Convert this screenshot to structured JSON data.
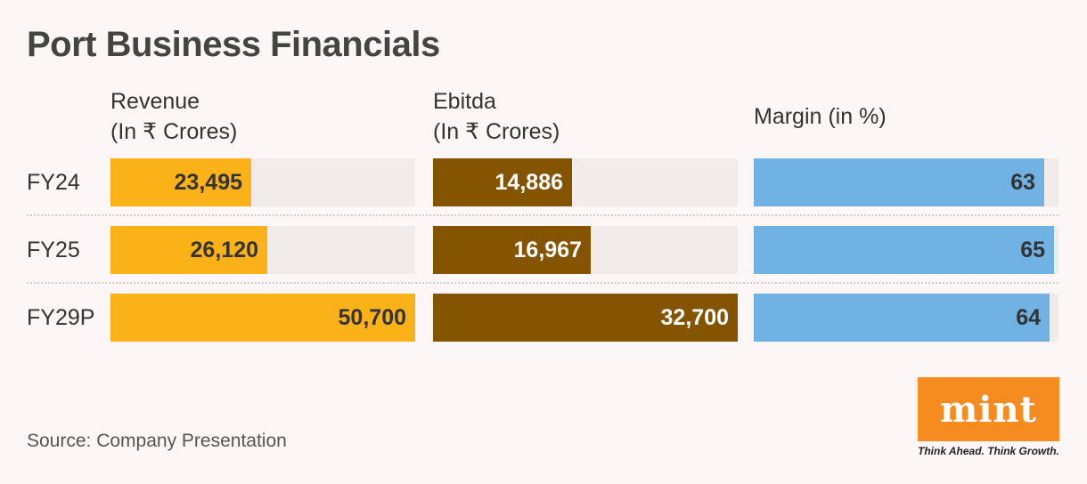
{
  "title": "Port Business Financials",
  "chart_data": {
    "type": "bar",
    "orientation": "horizontal",
    "categories": [
      "FY24",
      "FY25",
      "FY29P"
    ],
    "series": [
      {
        "name": "Revenue",
        "header_line1": "Revenue",
        "header_line2": "(In ₹ Crores)",
        "values": [
          23495,
          26120,
          50700
        ],
        "labels": [
          "23,495",
          "26,120",
          "50,700"
        ],
        "max": 50700,
        "color": "#fbb219",
        "label_color": "#333333"
      },
      {
        "name": "Ebitda",
        "header_line1": "Ebitda",
        "header_line2": "(In ₹ Crores)",
        "values": [
          14886,
          16967,
          32700
        ],
        "labels": [
          "14,886",
          "16,967",
          "32,700"
        ],
        "max": 32700,
        "color": "#855400",
        "label_color": "#ffffff"
      },
      {
        "name": "Margin (in %)",
        "header_line1": "Margin (in %)",
        "header_line2": "",
        "values": [
          63,
          65,
          64
        ],
        "labels": [
          "63",
          "65",
          "64"
        ],
        "max": 66,
        "color": "#6fb2e3",
        "label_color": "#333333"
      }
    ],
    "track_color": "#f1ecea"
  },
  "footer": {
    "source": "Source: Company Presentation"
  },
  "branding": {
    "logo_text": "mint",
    "tagline": "Think Ahead. Think Growth.",
    "logo_color": "#f68b1f"
  }
}
